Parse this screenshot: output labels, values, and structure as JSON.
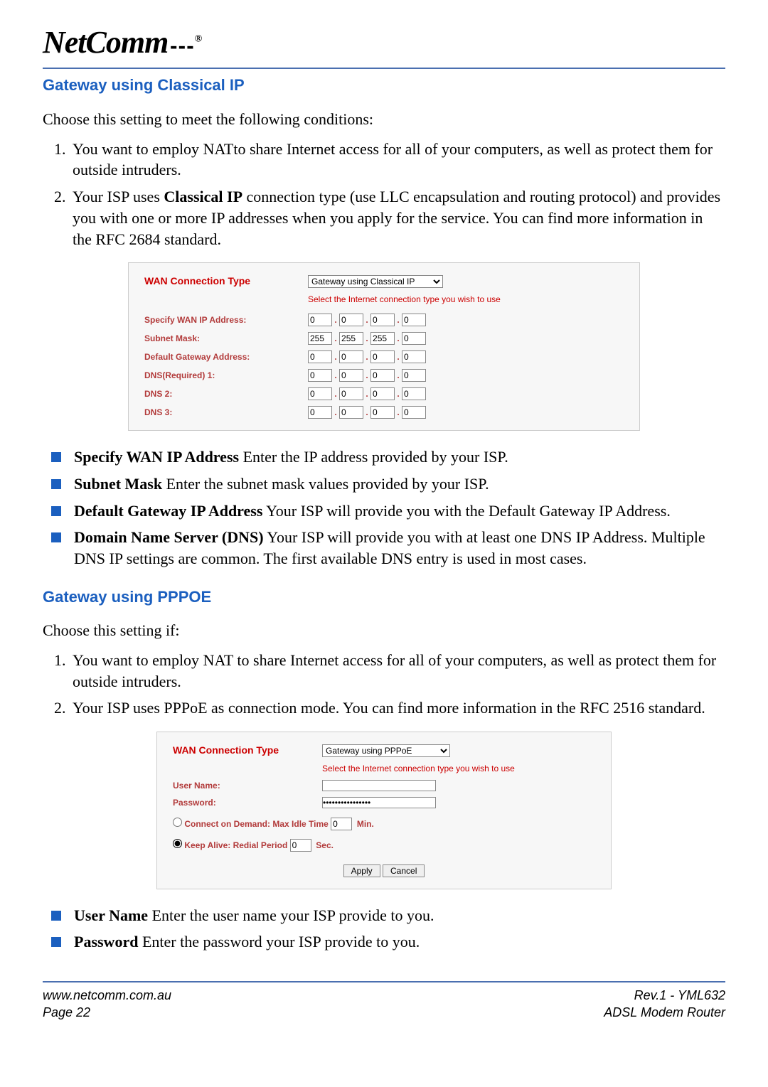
{
  "header": {
    "logo_text": "NetComm"
  },
  "section1": {
    "title": "Gateway using Classical IP",
    "intro": "Choose this setting to meet the following conditions:",
    "items": [
      "You want to employ NATto share Internet access for all of your computers, as well as protect them for outside intruders.",
      "Your ISP uses Classical IP connection type (use LLC encapsulation and routing protocol) and provides you with one or more IP addresses when you apply for the service. You can find more information in the RFC 2684 standard."
    ]
  },
  "screenshot1": {
    "wan_label": "WAN Connection Type",
    "wan_select": "Gateway using Classical IP",
    "help": "Select the Internet connection type you wish to use",
    "rows": [
      {
        "label": "Specify WAN IP Address:",
        "vals": [
          "0",
          "0",
          "0",
          "0"
        ]
      },
      {
        "label": "Subnet Mask:",
        "vals": [
          "255",
          "255",
          "255",
          "0"
        ]
      },
      {
        "label": "Default Gateway Address:",
        "vals": [
          "0",
          "0",
          "0",
          "0"
        ]
      },
      {
        "label": "DNS(Required)  1:",
        "vals": [
          "0",
          "0",
          "0",
          "0"
        ]
      },
      {
        "label": "DNS  2:",
        "vals": [
          "0",
          "0",
          "0",
          "0"
        ]
      },
      {
        "label": "DNS  3:",
        "vals": [
          "0",
          "0",
          "0",
          "0"
        ]
      }
    ]
  },
  "bullets1": [
    {
      "bold": "Specify WAN IP Address",
      "rest": " Enter the IP address provided by your ISP."
    },
    {
      "bold": "Subnet Mask",
      "rest": " Enter the subnet mask values provided by your ISP."
    },
    {
      "bold": "Default Gateway IP Address",
      "rest": " Your ISP will provide you with the Default Gateway IP Address."
    },
    {
      "bold": "Domain Name Server (DNS)",
      "rest": " Your ISP will provide you with at least one DNS IP Address. Multiple DNS IP settings are common. The first available DNS entry is used in most cases."
    }
  ],
  "section2": {
    "title": "Gateway using PPPOE",
    "intro": "Choose this setting if:",
    "items": [
      "You want to employ NAT to share Internet access for all of your computers, as well as protect them for outside intruders.",
      "Your ISP uses PPPoE as connection mode. You can find more information in the RFC 2516 standard."
    ]
  },
  "screenshot2": {
    "wan_label": "WAN Connection Type",
    "wan_select": "Gateway using PPPoE",
    "help": "Select the Internet connection type you wish to use",
    "user_label": "User Name:",
    "user_value": "",
    "pass_label": "Password:",
    "pass_value": "****************",
    "demand_label": "Connect on Demand: Max Idle Time",
    "demand_value": "0",
    "min": "Min.",
    "alive_label": "Keep Alive: Redial Period",
    "alive_value": "0",
    "sec": "Sec.",
    "apply": "Apply",
    "cancel": "Cancel"
  },
  "bullets2": [
    {
      "bold": "User Name",
      "rest": " Enter the user name your ISP provide to you."
    },
    {
      "bold": "Password",
      "rest": " Enter the password your ISP provide to you."
    }
  ],
  "footer": {
    "url": "www.netcomm.com.au",
    "page": "Page 22",
    "rev": "Rev.1 - YML632",
    "product": "ADSL Modem Router"
  }
}
